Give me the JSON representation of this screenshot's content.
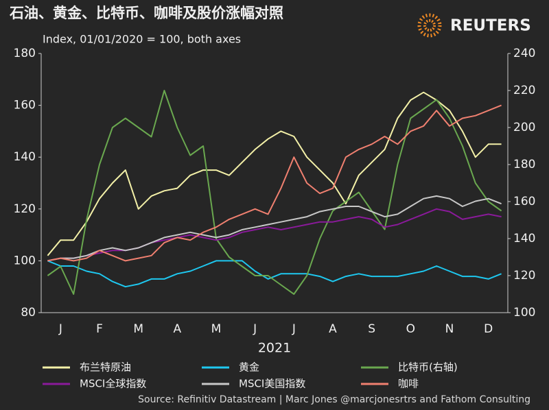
{
  "chart_data": {
    "type": "line",
    "title": "石油、黄金、比特币、咖啡及股价涨幅对照",
    "subtitle": "Index, 01/01/2020 = 100, both axes",
    "brand": "REUTERS",
    "xlabel": "2021",
    "source": "Source: Refinitiv Datastream | Marc Jones @marcjonesrtrs and Fathom Consulting",
    "categories": [
      null,
      "J",
      null,
      null,
      "F",
      null,
      null,
      "M",
      null,
      null,
      "A",
      null,
      null,
      "M",
      null,
      null,
      "J",
      null,
      null,
      "J",
      null,
      null,
      "A",
      null,
      null,
      "S",
      null,
      null,
      "O",
      null,
      null,
      "N",
      null,
      null,
      "D",
      null
    ],
    "ylim": [
      80,
      180
    ],
    "yticks": [
      80,
      100,
      120,
      140,
      160,
      180
    ],
    "y2lim": [
      100,
      240
    ],
    "y2ticks": [
      100,
      120,
      140,
      160,
      180,
      200,
      220,
      240
    ],
    "series": [
      {
        "name": "布兰特原油",
        "color": "#f4f1a8",
        "values": [
          102,
          108,
          108,
          115,
          124,
          130,
          135,
          120,
          125,
          127,
          128,
          133,
          135,
          135,
          133,
          138,
          143,
          147,
          150,
          148,
          140,
          135,
          130,
          122,
          133,
          138,
          143,
          155,
          162,
          165,
          162,
          158,
          150,
          140,
          145,
          145
        ]
      },
      {
        "name": "黄金",
        "color": "#1ec8f0",
        "values": [
          100,
          98,
          98,
          96,
          95,
          92,
          90,
          91,
          93,
          93,
          95,
          96,
          98,
          100,
          100,
          100,
          96,
          93,
          95,
          95,
          95,
          94,
          92,
          94,
          95,
          94,
          94,
          94,
          95,
          96,
          98,
          96,
          94,
          94,
          93,
          95
        ]
      },
      {
        "name": "比特币(右轴)",
        "color": "#6aa84f",
        "axis": "y2",
        "values": [
          120,
          125,
          110,
          150,
          180,
          200,
          205,
          200,
          195,
          220,
          200,
          185,
          190,
          140,
          130,
          125,
          120,
          120,
          115,
          110,
          120,
          140,
          155,
          160,
          165,
          155,
          145,
          180,
          205,
          210,
          215,
          205,
          190,
          170,
          160,
          155
        ]
      },
      {
        "name": "MSCI全球指数",
        "color": "#8a1a9a",
        "values": [
          100,
          101,
          101,
          102,
          103,
          104,
          104,
          105,
          107,
          108,
          109,
          110,
          109,
          108,
          109,
          111,
          112,
          113,
          112,
          113,
          114,
          115,
          115,
          116,
          117,
          116,
          113,
          114,
          116,
          118,
          120,
          119,
          116,
          117,
          118,
          117
        ]
      },
      {
        "name": "MSCI美国指数",
        "color": "#c8c8c8",
        "values": [
          100,
          101,
          101,
          102,
          104,
          105,
          104,
          105,
          107,
          109,
          110,
          111,
          110,
          109,
          110,
          112,
          113,
          114,
          115,
          116,
          117,
          119,
          120,
          121,
          121,
          119,
          117,
          118,
          121,
          124,
          125,
          124,
          121,
          123,
          124,
          122
        ]
      },
      {
        "name": "咖啡",
        "color": "#f08070",
        "values": [
          100,
          101,
          100,
          101,
          104,
          102,
          100,
          101,
          102,
          107,
          109,
          108,
          111,
          113,
          116,
          118,
          120,
          118,
          128,
          140,
          130,
          126,
          128,
          140,
          143,
          145,
          148,
          145,
          150,
          152,
          158,
          152,
          155,
          156,
          158,
          160
        ]
      }
    ]
  }
}
